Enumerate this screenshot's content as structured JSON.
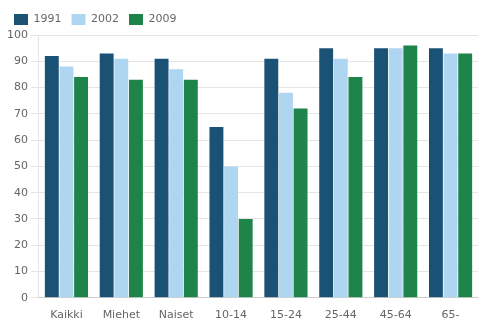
{
  "chart_data": {
    "type": "bar",
    "categories": [
      "Kaikki",
      "Miehet",
      "Naiset",
      "10-14",
      "15-24",
      "25-44",
      "45-64",
      "65-"
    ],
    "series": [
      {
        "name": "1991",
        "color": "#1a5276",
        "values": [
          92,
          93,
          91,
          65,
          91,
          95,
          95,
          95
        ]
      },
      {
        "name": "2002",
        "color": "#aed6f1",
        "values": [
          88,
          91,
          87,
          50,
          78,
          91,
          95,
          93
        ]
      },
      {
        "name": "2009",
        "color": "#1e8449",
        "values": [
          84,
          83,
          83,
          30,
          72,
          84,
          96,
          93
        ]
      }
    ],
    "ylim": [
      0,
      100
    ],
    "yticks": [
      0,
      10,
      20,
      30,
      40,
      50,
      60,
      70,
      80,
      90,
      100
    ],
    "grid": true,
    "legend": "upper left"
  }
}
